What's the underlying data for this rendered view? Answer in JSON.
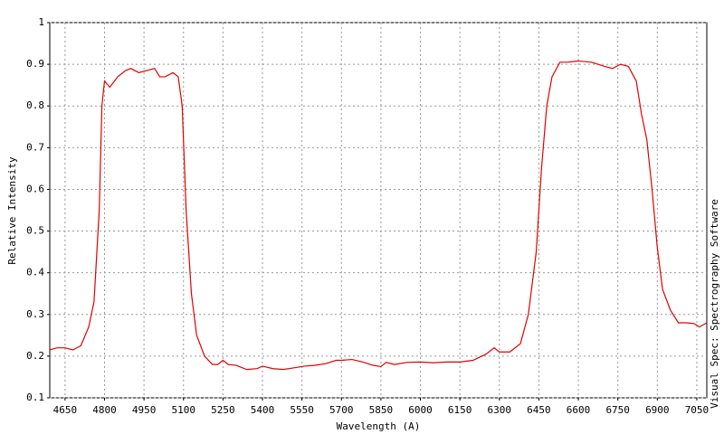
{
  "chart_data": {
    "type": "line",
    "xlabel": "Wavelength (A)",
    "ylabel": "Relative Intensity",
    "side_text": "Visual Spec: Spectrography Software",
    "x": [
      4592,
      4620,
      4650,
      4680,
      4710,
      4740,
      4760,
      4780,
      4790,
      4800,
      4820,
      4850,
      4880,
      4900,
      4930,
      4960,
      4990,
      5010,
      5030,
      5060,
      5080,
      5095,
      5110,
      5130,
      5150,
      5180,
      5210,
      5230,
      5250,
      5270,
      5300,
      5340,
      5380,
      5400,
      5440,
      5480,
      5520,
      5560,
      5600,
      5640,
      5680,
      5700,
      5740,
      5780,
      5820,
      5850,
      5870,
      5900,
      5950,
      6000,
      6050,
      6100,
      6150,
      6200,
      6250,
      6280,
      6300,
      6340,
      6380,
      6410,
      6440,
      6460,
      6480,
      6500,
      6530,
      6560,
      6600,
      6650,
      6700,
      6730,
      6760,
      6790,
      6820,
      6840,
      6860,
      6880,
      6900,
      6920,
      6950,
      6980,
      7010,
      7040,
      7060,
      7088
    ],
    "series": [
      {
        "color": "#e00000",
        "values": [
          0.215,
          0.22,
          0.22,
          0.215,
          0.225,
          0.27,
          0.33,
          0.55,
          0.8,
          0.86,
          0.845,
          0.87,
          0.885,
          0.89,
          0.88,
          0.885,
          0.89,
          0.87,
          0.87,
          0.88,
          0.87,
          0.8,
          0.55,
          0.35,
          0.25,
          0.2,
          0.18,
          0.18,
          0.19,
          0.18,
          0.178,
          0.168,
          0.17,
          0.176,
          0.17,
          0.168,
          0.172,
          0.176,
          0.178,
          0.182,
          0.19,
          0.19,
          0.192,
          0.186,
          0.178,
          0.175,
          0.185,
          0.18,
          0.185,
          0.186,
          0.184,
          0.186,
          0.186,
          0.19,
          0.205,
          0.22,
          0.21,
          0.21,
          0.23,
          0.3,
          0.45,
          0.65,
          0.8,
          0.87,
          0.905,
          0.905,
          0.908,
          0.905,
          0.895,
          0.89,
          0.9,
          0.895,
          0.86,
          0.78,
          0.72,
          0.6,
          0.46,
          0.36,
          0.31,
          0.28,
          0.28,
          0.278,
          0.27,
          0.28
        ]
      }
    ],
    "xlim": [
      4592,
      7088
    ],
    "ylim": [
      0.1,
      1
    ],
    "xticks": [
      4650,
      4800,
      4950,
      5100,
      5250,
      5400,
      5550,
      5700,
      5850,
      6000,
      6150,
      6300,
      6450,
      6600,
      6750,
      6900,
      7050
    ],
    "yticks": [
      0.1,
      0.2,
      0.3,
      0.4,
      0.5,
      0.6,
      0.7,
      0.8,
      0.9,
      1
    ],
    "grid": true
  }
}
